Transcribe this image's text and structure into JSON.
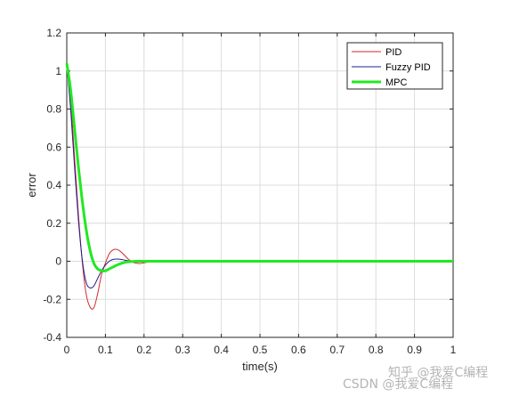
{
  "chart_data": {
    "type": "line",
    "title": "",
    "xlabel": "time(s)",
    "ylabel": "error",
    "xlim": [
      0,
      1
    ],
    "ylim": [
      -0.4,
      1.2
    ],
    "xticks": [
      0,
      0.1,
      0.2,
      0.3,
      0.4,
      0.5,
      0.6,
      0.7,
      0.8,
      0.9,
      1
    ],
    "xtick_labels": [
      "0",
      "0.1",
      "0.2",
      "0.3",
      "0.4",
      "0.5",
      "0.6",
      "0.7",
      "0.8",
      "0.9",
      "1"
    ],
    "yticks": [
      -0.4,
      -0.2,
      0,
      0.2,
      0.4,
      0.6,
      0.8,
      1,
      1.2
    ],
    "ytick_labels": [
      "-0.4",
      "-0.2",
      "0",
      "0.2",
      "0.4",
      "0.6",
      "0.8",
      "1",
      "1.2"
    ],
    "grid": true,
    "legend_position": "top-right",
    "series": [
      {
        "name": "PID",
        "color": "#d62728",
        "x": [
          0,
          0.01,
          0.02,
          0.03,
          0.04,
          0.05,
          0.06,
          0.07,
          0.08,
          0.09,
          0.1,
          0.11,
          0.12,
          0.13,
          0.14,
          0.15,
          0.16,
          0.17,
          0.18,
          0.19,
          0.2,
          0.22,
          0.24
        ],
        "y": [
          1.04,
          0.85,
          0.55,
          0.25,
          0.0,
          -0.17,
          -0.24,
          -0.245,
          -0.17,
          -0.07,
          -0.01,
          0.04,
          0.06,
          0.062,
          0.05,
          0.03,
          0.01,
          -0.005,
          -0.01,
          -0.012,
          -0.008,
          -0.002,
          0
        ]
      },
      {
        "name": "Fuzzy PID",
        "color": "#1f1f8f",
        "x": [
          0,
          0.01,
          0.02,
          0.03,
          0.04,
          0.05,
          0.06,
          0.07,
          0.08,
          0.09,
          0.1,
          0.11,
          0.12,
          0.13,
          0.14,
          0.15,
          0.16,
          0.18,
          0.2
        ],
        "y": [
          1.04,
          0.8,
          0.5,
          0.22,
          0.01,
          -0.11,
          -0.14,
          -0.13,
          -0.09,
          -0.05,
          -0.02,
          0.0,
          0.01,
          0.012,
          0.01,
          0.006,
          0.003,
          0,
          0
        ]
      },
      {
        "name": "MPC",
        "color": "#22e822",
        "x": [
          0,
          0.01,
          0.02,
          0.03,
          0.04,
          0.05,
          0.06,
          0.07,
          0.08,
          0.09,
          0.1,
          0.11,
          0.12,
          0.13,
          0.14,
          0.15,
          0.16,
          0.18,
          0.2,
          0.25,
          0.3,
          1
        ],
        "y": [
          1.04,
          0.9,
          0.7,
          0.5,
          0.32,
          0.17,
          0.06,
          -0.01,
          -0.04,
          -0.05,
          -0.05,
          -0.04,
          -0.03,
          -0.02,
          -0.012,
          -0.006,
          -0.003,
          0,
          0,
          0,
          0,
          0
        ]
      }
    ]
  },
  "watermark": {
    "line1": "知乎 @我爱C编程",
    "line2": "CSDN @我爱C编程"
  }
}
